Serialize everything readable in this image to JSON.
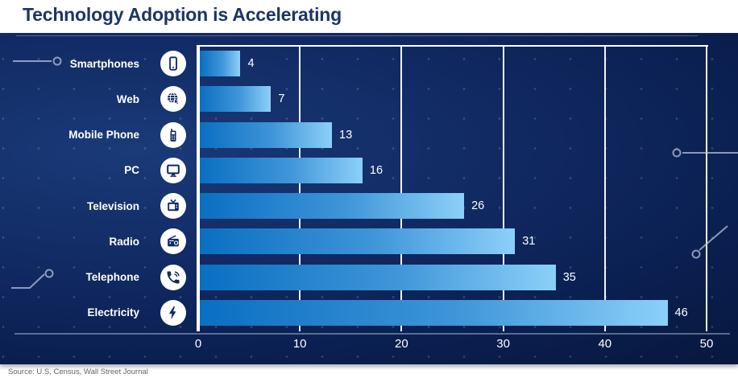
{
  "header": {
    "title": "Technology Adoption is Accelerating"
  },
  "footer": {
    "source": "Source: U.S, Census, Wall Street Journal"
  },
  "chart_data": {
    "type": "bar",
    "orientation": "horizontal",
    "title": "Technology Adoption is Accelerating",
    "categories": [
      "Smartphones",
      "Web",
      "Mobile Phone",
      "PC",
      "Television",
      "Radio",
      "Telephone",
      "Electricity"
    ],
    "values": [
      4,
      7,
      13,
      16,
      26,
      31,
      35,
      46
    ],
    "icons": [
      "smartphone-icon",
      "web-globe-icon",
      "mobile-phone-icon",
      "pc-monitor-icon",
      "television-icon",
      "radio-icon",
      "telephone-icon",
      "electricity-icon"
    ],
    "x_ticks": [
      "0",
      "10",
      "20",
      "30",
      "40",
      "50"
    ],
    "xlim": [
      0,
      50
    ],
    "grid": "vertical white gridlines every 10 units",
    "legend": "none",
    "colors": {
      "panel_background": "#0d2254",
      "bar_gradient_start": "#0a6fc2",
      "bar_gradient_end": "#8bd0f9",
      "gridline": "#ffffff",
      "label_text": "#ffffff",
      "title_text": "#1c3568",
      "icon_glyph": "#0e2b5e"
    },
    "source": "Source: U.S, Census, Wall Street Journal"
  }
}
